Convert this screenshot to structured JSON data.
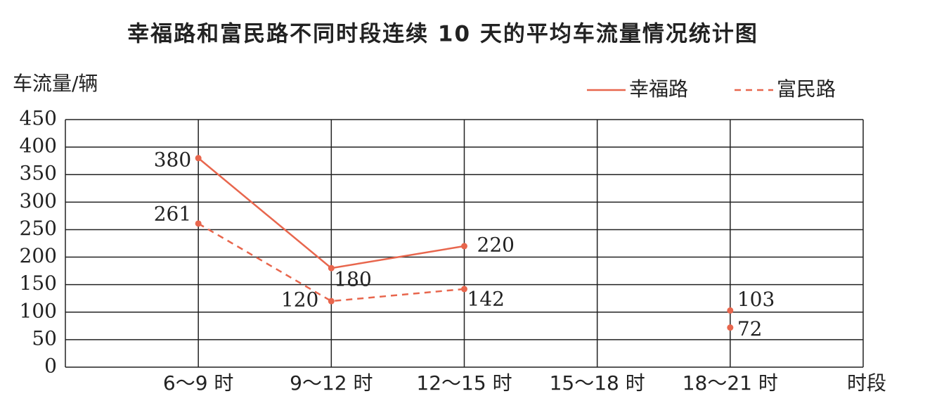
{
  "chart_data": {
    "type": "line",
    "title": "幸福路和富民路不同时段连续 10 天的平均车流量情况统计图",
    "y_label": "车流量/辆",
    "x_label": "时段",
    "categories": [
      "6～9 时",
      "9～12 时",
      "12～15 时",
      "15～18 时",
      "18～21 时"
    ],
    "series": [
      {
        "name": "幸福路",
        "color": "#e8664d",
        "line_style": "solid",
        "values": [
          380,
          180,
          220,
          null,
          103
        ]
      },
      {
        "name": "富民路",
        "color": "#e8664d",
        "line_style": "dashed",
        "values": [
          261,
          120,
          142,
          null,
          72
        ]
      }
    ],
    "ylim": [
      0,
      450
    ],
    "yticks": [
      0,
      50,
      100,
      150,
      200,
      250,
      300,
      350,
      400,
      450
    ],
    "grid": true,
    "legend": "top-right"
  }
}
